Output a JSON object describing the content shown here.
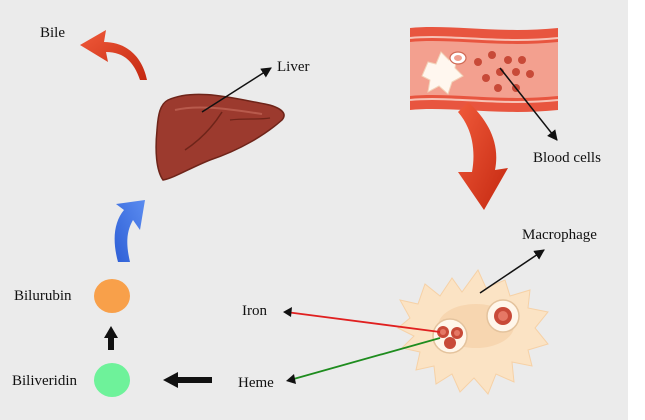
{
  "labels": {
    "bile": "Bile",
    "liver": "Liver",
    "blood_cells": "Blood cells",
    "macrophage": "Macrophage",
    "iron": "Iron",
    "heme": "Heme",
    "bilirubin": "Bilurubin",
    "biliverdin": "Biliveridin"
  },
  "colors": {
    "background": "#ebebeb",
    "red_arrow": "#d93b1f",
    "blue_arrow": "#3b6fe0",
    "liver": "#9c3a2e",
    "vessel": "#e8553f",
    "vessel_inner": "#f3a08f",
    "bilirubin_dot": "#f8a04a",
    "biliverdin_dot": "#6ef29a",
    "iron_line": "#e02020",
    "heme_line": "#1e8c1e",
    "macrophage": "#fbe3c4"
  }
}
